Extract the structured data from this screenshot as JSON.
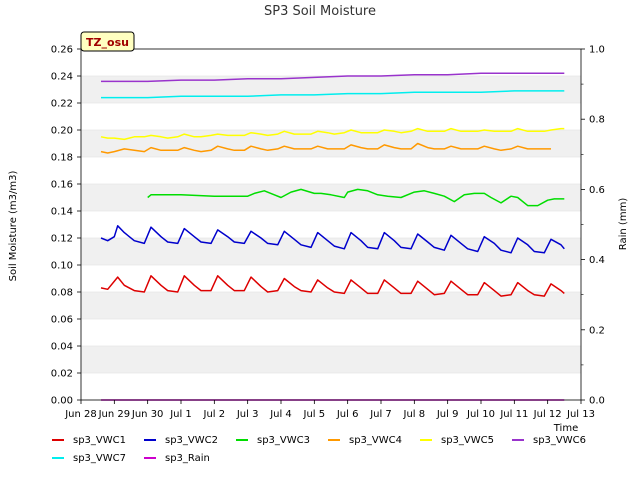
{
  "chart_data": {
    "type": "line",
    "title": "SP3 Soil Moisture",
    "site_label": "TZ_osu",
    "xlabel": "Time",
    "ylabel": "Soil Moisture (m3/m3)",
    "y2label": "Rain (mm)",
    "x_ticks": [
      "Jun 28",
      "Jun 29",
      "Jun 30",
      "Jul 1",
      "Jul 2",
      "Jul 3",
      "Jul 4",
      "Jul 5",
      "Jul 6",
      "Jul 7",
      "Jul 8",
      "Jul 9",
      "Jul 10",
      "Jul 11",
      "Jul 12",
      "Jul 13"
    ],
    "xlim_days": [
      0,
      15
    ],
    "y_ticks": [
      "0.00",
      "0.02",
      "0.04",
      "0.06",
      "0.08",
      "0.10",
      "0.12",
      "0.14",
      "0.16",
      "0.18",
      "0.20",
      "0.22",
      "0.24",
      "0.26"
    ],
    "ylim": [
      0,
      0.26
    ],
    "y2_ticks": [
      "0.0",
      "0.2",
      "0.4",
      "0.6",
      "0.8",
      "1.0"
    ],
    "y2lim": [
      0,
      1.0
    ],
    "grid": "horizontal bands",
    "legend_location": "bottom",
    "series": [
      {
        "name": "sp3_VWC1",
        "color": "#dd0000",
        "axis": "left",
        "x": [
          0.6,
          0.8,
          1.1,
          1.3,
          1.6,
          1.9,
          2.1,
          2.4,
          2.6,
          2.9,
          3.1,
          3.4,
          3.6,
          3.9,
          4.1,
          4.4,
          4.6,
          4.9,
          5.1,
          5.4,
          5.6,
          5.9,
          6.1,
          6.4,
          6.6,
          6.9,
          7.1,
          7.4,
          7.6,
          7.9,
          8.1,
          8.4,
          8.6,
          8.9,
          9.1,
          9.4,
          9.6,
          9.9,
          10.1,
          10.4,
          10.6,
          10.9,
          11.1,
          11.4,
          11.6,
          11.9,
          12.1,
          12.4,
          12.6,
          12.9,
          13.1,
          13.4,
          13.6,
          13.9,
          14.1,
          14.4,
          14.5
        ],
        "y": [
          0.083,
          0.082,
          0.091,
          0.085,
          0.081,
          0.08,
          0.092,
          0.085,
          0.081,
          0.08,
          0.092,
          0.085,
          0.081,
          0.081,
          0.092,
          0.085,
          0.081,
          0.081,
          0.091,
          0.084,
          0.08,
          0.081,
          0.09,
          0.084,
          0.081,
          0.08,
          0.089,
          0.083,
          0.08,
          0.079,
          0.089,
          0.083,
          0.079,
          0.079,
          0.089,
          0.083,
          0.079,
          0.079,
          0.088,
          0.082,
          0.078,
          0.079,
          0.088,
          0.082,
          0.078,
          0.078,
          0.087,
          0.081,
          0.077,
          0.078,
          0.087,
          0.081,
          0.078,
          0.077,
          0.086,
          0.081,
          0.079
        ]
      },
      {
        "name": "sp3_VWC2",
        "color": "#0000cc",
        "axis": "left",
        "x": [
          0.6,
          0.8,
          1.0,
          1.1,
          1.3,
          1.6,
          1.9,
          2.1,
          2.4,
          2.6,
          2.9,
          3.1,
          3.4,
          3.6,
          3.9,
          4.1,
          4.4,
          4.6,
          4.9,
          5.1,
          5.4,
          5.6,
          5.9,
          6.1,
          6.4,
          6.6,
          6.9,
          7.1,
          7.4,
          7.6,
          7.9,
          8.1,
          8.4,
          8.6,
          8.9,
          9.1,
          9.4,
          9.6,
          9.9,
          10.1,
          10.4,
          10.6,
          10.9,
          11.1,
          11.4,
          11.6,
          11.9,
          12.1,
          12.4,
          12.6,
          12.9,
          13.1,
          13.4,
          13.6,
          13.9,
          14.1,
          14.4,
          14.5
        ],
        "y": [
          0.12,
          0.118,
          0.121,
          0.129,
          0.124,
          0.118,
          0.116,
          0.128,
          0.121,
          0.117,
          0.116,
          0.127,
          0.121,
          0.117,
          0.116,
          0.126,
          0.121,
          0.117,
          0.116,
          0.125,
          0.12,
          0.116,
          0.115,
          0.125,
          0.119,
          0.115,
          0.113,
          0.124,
          0.118,
          0.114,
          0.112,
          0.124,
          0.118,
          0.113,
          0.112,
          0.124,
          0.118,
          0.113,
          0.112,
          0.123,
          0.117,
          0.113,
          0.111,
          0.122,
          0.116,
          0.112,
          0.11,
          0.121,
          0.116,
          0.111,
          0.109,
          0.12,
          0.115,
          0.11,
          0.109,
          0.119,
          0.115,
          0.112
        ]
      },
      {
        "name": "sp3_VWC3",
        "color": "#00dd00",
        "axis": "left",
        "x": [
          2.0,
          2.1,
          3.0,
          4.0,
          5.0,
          5.2,
          5.5,
          5.8,
          6.0,
          6.3,
          6.6,
          7.0,
          7.2,
          7.5,
          7.9,
          8.0,
          8.3,
          8.6,
          8.9,
          9.2,
          9.6,
          10.0,
          10.3,
          10.6,
          10.9,
          11.2,
          11.5,
          11.8,
          12.1,
          12.3,
          12.6,
          12.9,
          13.1,
          13.4,
          13.7,
          14.0,
          14.2,
          14.5
        ],
        "y": [
          0.15,
          0.152,
          0.152,
          0.151,
          0.151,
          0.153,
          0.155,
          0.152,
          0.15,
          0.154,
          0.156,
          0.153,
          0.153,
          0.152,
          0.15,
          0.154,
          0.156,
          0.155,
          0.152,
          0.151,
          0.15,
          0.154,
          0.155,
          0.153,
          0.151,
          0.147,
          0.152,
          0.153,
          0.153,
          0.15,
          0.146,
          0.151,
          0.15,
          0.144,
          0.144,
          0.148,
          0.149,
          0.149
        ]
      },
      {
        "name": "sp3_VWC4",
        "color": "#ff9900",
        "axis": "left",
        "x": [
          0.6,
          0.8,
          1.0,
          1.3,
          1.6,
          1.9,
          2.1,
          2.4,
          2.6,
          2.9,
          3.1,
          3.4,
          3.6,
          3.9,
          4.1,
          4.4,
          4.6,
          4.9,
          5.1,
          5.4,
          5.6,
          5.9,
          6.1,
          6.4,
          6.6,
          6.9,
          7.1,
          7.4,
          7.6,
          7.9,
          8.1,
          8.4,
          8.6,
          8.9,
          9.1,
          9.4,
          9.6,
          9.9,
          10.1,
          10.4,
          10.6,
          10.9,
          11.1,
          11.4,
          11.6,
          11.9,
          12.1,
          12.4,
          12.6,
          12.9,
          13.1,
          13.4,
          13.6,
          13.9,
          14.1
        ],
        "y": [
          0.184,
          0.183,
          0.184,
          0.186,
          0.185,
          0.184,
          0.187,
          0.185,
          0.185,
          0.185,
          0.187,
          0.185,
          0.184,
          0.185,
          0.188,
          0.186,
          0.185,
          0.185,
          0.188,
          0.186,
          0.185,
          0.186,
          0.188,
          0.186,
          0.186,
          0.186,
          0.188,
          0.186,
          0.186,
          0.186,
          0.189,
          0.187,
          0.186,
          0.186,
          0.189,
          0.187,
          0.186,
          0.186,
          0.19,
          0.187,
          0.186,
          0.186,
          0.188,
          0.186,
          0.186,
          0.186,
          0.188,
          0.186,
          0.185,
          0.186,
          0.188,
          0.186,
          0.186,
          0.186,
          0.186
        ]
      },
      {
        "name": "sp3_VWC5",
        "color": "#ffff00",
        "axis": "left",
        "x": [
          0.6,
          0.8,
          1.0,
          1.3,
          1.6,
          1.9,
          2.1,
          2.4,
          2.6,
          2.9,
          3.1,
          3.4,
          3.6,
          3.9,
          4.1,
          4.4,
          4.6,
          4.9,
          5.1,
          5.4,
          5.6,
          5.9,
          6.1,
          6.4,
          6.6,
          6.9,
          7.1,
          7.4,
          7.6,
          7.9,
          8.1,
          8.4,
          8.6,
          8.9,
          9.1,
          9.4,
          9.6,
          9.9,
          10.1,
          10.4,
          10.6,
          10.9,
          11.1,
          11.4,
          11.6,
          11.9,
          12.1,
          12.4,
          12.6,
          12.9,
          13.1,
          13.4,
          13.6,
          13.9,
          14.1,
          14.4,
          14.5
        ],
        "y": [
          0.195,
          0.194,
          0.194,
          0.193,
          0.195,
          0.195,
          0.196,
          0.195,
          0.194,
          0.195,
          0.197,
          0.195,
          0.195,
          0.196,
          0.197,
          0.196,
          0.196,
          0.196,
          0.198,
          0.197,
          0.196,
          0.197,
          0.199,
          0.197,
          0.197,
          0.197,
          0.199,
          0.198,
          0.197,
          0.198,
          0.2,
          0.198,
          0.198,
          0.198,
          0.2,
          0.199,
          0.198,
          0.199,
          0.201,
          0.199,
          0.199,
          0.199,
          0.201,
          0.199,
          0.199,
          0.199,
          0.2,
          0.199,
          0.199,
          0.199,
          0.201,
          0.199,
          0.199,
          0.199,
          0.2,
          0.201,
          0.201
        ]
      },
      {
        "name": "sp3_VWC6",
        "color": "#9933cc",
        "axis": "left",
        "x": [
          0.6,
          1.0,
          2.0,
          3.0,
          4.0,
          5.0,
          6.0,
          7.0,
          8.0,
          9.0,
          10.0,
          11.0,
          12.0,
          13.0,
          14.0,
          14.5
        ],
        "y": [
          0.236,
          0.236,
          0.236,
          0.237,
          0.237,
          0.238,
          0.238,
          0.239,
          0.24,
          0.24,
          0.241,
          0.241,
          0.242,
          0.242,
          0.242,
          0.242
        ]
      },
      {
        "name": "sp3_VWC7",
        "color": "#00eeee",
        "axis": "left",
        "x": [
          0.6,
          1.0,
          2.0,
          3.0,
          4.0,
          5.0,
          6.0,
          7.0,
          8.0,
          9.0,
          10.0,
          11.0,
          12.0,
          13.0,
          14.0,
          14.5
        ],
        "y": [
          0.224,
          0.224,
          0.224,
          0.225,
          0.225,
          0.225,
          0.226,
          0.226,
          0.227,
          0.227,
          0.228,
          0.228,
          0.228,
          0.229,
          0.229,
          0.229
        ]
      },
      {
        "name": "sp3_Rain",
        "color": "#cc00cc",
        "axis": "right",
        "x": [
          0.6,
          14.5
        ],
        "y": [
          0.0,
          0.0
        ]
      }
    ]
  }
}
